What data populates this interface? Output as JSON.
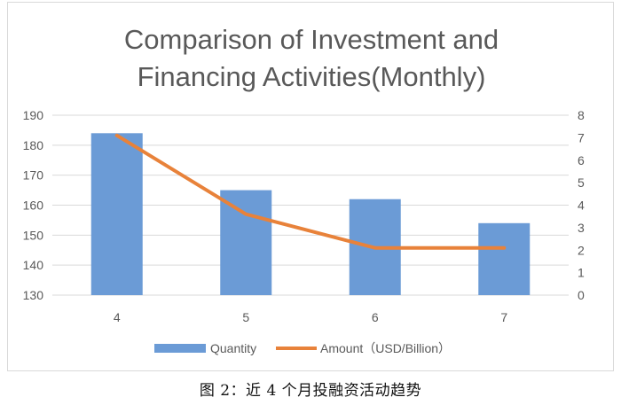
{
  "caption": "图 2：近 4 个月投融资活动趋势",
  "chart_data": {
    "type": "bar+line",
    "title_lines": [
      "Comparison of Investment and",
      "Financing Activities(Monthly)"
    ],
    "categories": [
      "4",
      "5",
      "6",
      "7"
    ],
    "series": [
      {
        "name": "Quantity",
        "type": "bar",
        "axis": "left",
        "values": [
          184,
          165,
          162,
          154
        ],
        "color": "#6b9bd6"
      },
      {
        "name": "Amount（USD/Billion）",
        "type": "line",
        "axis": "right",
        "values": [
          7.1,
          3.6,
          2.1,
          2.1
        ],
        "color": "#e8823a"
      }
    ],
    "y_left": {
      "min": 130,
      "max": 190,
      "ticks": [
        "130",
        "140",
        "150",
        "160",
        "170",
        "180",
        "190"
      ]
    },
    "y_right": {
      "min": 0,
      "max": 8,
      "ticks": [
        "0",
        "1",
        "2",
        "3",
        "4",
        "5",
        "6",
        "7",
        "8"
      ]
    },
    "grid": true,
    "legend_position": "bottom"
  }
}
